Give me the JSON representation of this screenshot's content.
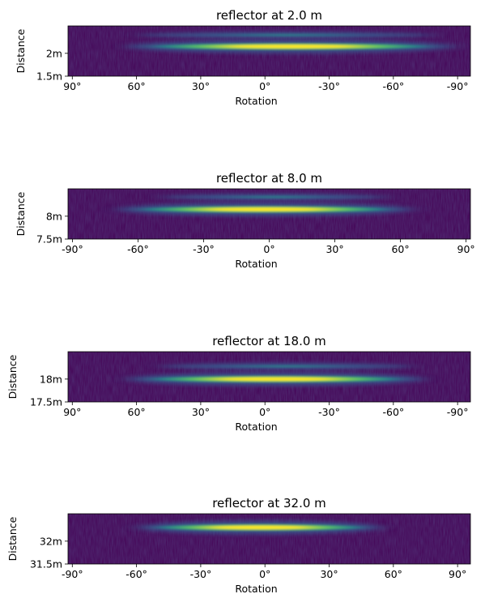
{
  "chart_data": [
    {
      "type": "heatmap",
      "title": "reflector at 2.0 m",
      "xlabel": "Rotation",
      "ylabel": "Distance",
      "xlim": [
        92,
        -96
      ],
      "ylim": [
        1.5,
        2.6
      ],
      "x_ticks": [
        {
          "value": 90,
          "label": "90°"
        },
        {
          "value": 60,
          "label": "60°"
        },
        {
          "value": 30,
          "label": "30°"
        },
        {
          "value": 0,
          "label": "0°"
        },
        {
          "value": -30,
          "label": "-30°"
        },
        {
          "value": -60,
          "label": "-60°"
        },
        {
          "value": -90,
          "label": "-90°"
        }
      ],
      "y_ticks": [
        {
          "value": 2.0,
          "label": "2m"
        },
        {
          "value": 1.5,
          "label": "1.5m"
        }
      ],
      "bands": [
        {
          "distance": 2.15,
          "angle_min": -89,
          "angle_max": 65,
          "intensity": 1.0
        },
        {
          "distance": 2.4,
          "angle_min": -80,
          "angle_max": 60,
          "intensity": 0.3
        }
      ],
      "colormap": [
        "#440154",
        "#3b528b",
        "#21918c",
        "#5ec962",
        "#fde725"
      ]
    },
    {
      "type": "heatmap",
      "title": "reflector at 8.0 m",
      "xlabel": "Rotation",
      "ylabel": "Distance",
      "xlim": [
        -92,
        92
      ],
      "ylim": [
        7.5,
        8.6
      ],
      "x_ticks": [
        {
          "value": -90,
          "label": "-90°"
        },
        {
          "value": -60,
          "label": "-60°"
        },
        {
          "value": -30,
          "label": "-30°"
        },
        {
          "value": 0,
          "label": "0°"
        },
        {
          "value": 30,
          "label": "30°"
        },
        {
          "value": 60,
          "label": "60°"
        },
        {
          "value": 90,
          "label": "90°"
        }
      ],
      "y_ticks": [
        {
          "value": 8.0,
          "label": "8m"
        },
        {
          "value": 7.5,
          "label": "7.5m"
        }
      ],
      "bands": [
        {
          "distance": 8.15,
          "angle_min": -70,
          "angle_max": 66,
          "intensity": 1.0
        },
        {
          "distance": 8.42,
          "angle_min": -50,
          "angle_max": 55,
          "intensity": 0.35
        }
      ],
      "colormap": [
        "#440154",
        "#3b528b",
        "#21918c",
        "#5ec962",
        "#fde725"
      ]
    },
    {
      "type": "heatmap",
      "title": "reflector at 18.0 m",
      "xlabel": "Rotation",
      "ylabel": "Distance",
      "xlim": [
        92,
        -96
      ],
      "ylim": [
        17.5,
        18.6
      ],
      "x_ticks": [
        {
          "value": 90,
          "label": "90°"
        },
        {
          "value": 60,
          "label": "60°"
        },
        {
          "value": 30,
          "label": "30°"
        },
        {
          "value": 0,
          "label": "0°"
        },
        {
          "value": -30,
          "label": "-30°"
        },
        {
          "value": -60,
          "label": "-60°"
        },
        {
          "value": -90,
          "label": "-90°"
        }
      ],
      "y_ticks": [
        {
          "value": 18.0,
          "label": "18m"
        },
        {
          "value": 17.5,
          "label": "17.5m"
        }
      ],
      "bands": [
        {
          "distance": 18.0,
          "angle_min": -75,
          "angle_max": 65,
          "intensity": 1.0
        },
        {
          "distance": 18.28,
          "angle_min": -70,
          "angle_max": 50,
          "intensity": 0.35
        }
      ],
      "colormap": [
        "#440154",
        "#3b528b",
        "#21918c",
        "#5ec962",
        "#fde725"
      ]
    },
    {
      "type": "heatmap",
      "title": "reflector at 32.0 m",
      "xlabel": "Rotation",
      "ylabel": "Distance",
      "xlim": [
        -92,
        96
      ],
      "ylim": [
        31.5,
        32.6
      ],
      "x_ticks": [
        {
          "value": -90,
          "label": "-90°"
        },
        {
          "value": -60,
          "label": "-60°"
        },
        {
          "value": -30,
          "label": "-30°"
        },
        {
          "value": 0,
          "label": "0°"
        },
        {
          "value": 30,
          "label": "30°"
        },
        {
          "value": 60,
          "label": "60°"
        },
        {
          "value": 90,
          "label": "90°"
        }
      ],
      "y_ticks": [
        {
          "value": 32.0,
          "label": "32m"
        },
        {
          "value": 31.5,
          "label": "31.5m"
        }
      ],
      "bands": [
        {
          "distance": 32.3,
          "angle_min": -60,
          "angle_max": 55,
          "intensity": 0.9
        }
      ],
      "colormap": [
        "#440154",
        "#3b528b",
        "#21918c",
        "#5ec962",
        "#fde725"
      ]
    }
  ]
}
